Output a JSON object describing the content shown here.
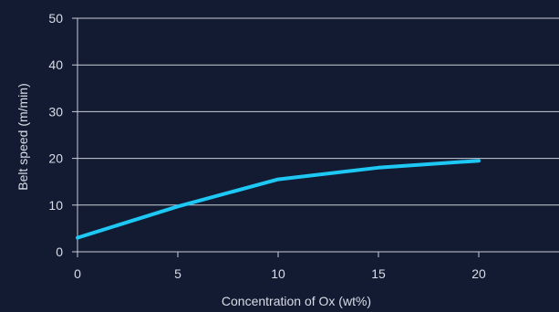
{
  "chart_data": {
    "type": "line",
    "title": "",
    "xlabel": "Concentration  of Ox (wt%)",
    "ylabel": "Belt speed (m/min)",
    "xlim": [
      0,
      24
    ],
    "ylim": [
      0,
      50
    ],
    "xticks": [
      0,
      5,
      10,
      15,
      20
    ],
    "yticks": [
      0,
      10,
      20,
      30,
      40,
      50
    ],
    "grid": "horizontal",
    "series": [
      {
        "x": [
          0,
          5,
          10,
          15,
          20
        ],
        "values": [
          3,
          9.7,
          15.5,
          18,
          19.5
        ],
        "color": "#1ec8f5"
      }
    ],
    "colors": {
      "background": "#131b33",
      "text": "#d9dde6",
      "grid": "#c9ced8"
    }
  }
}
